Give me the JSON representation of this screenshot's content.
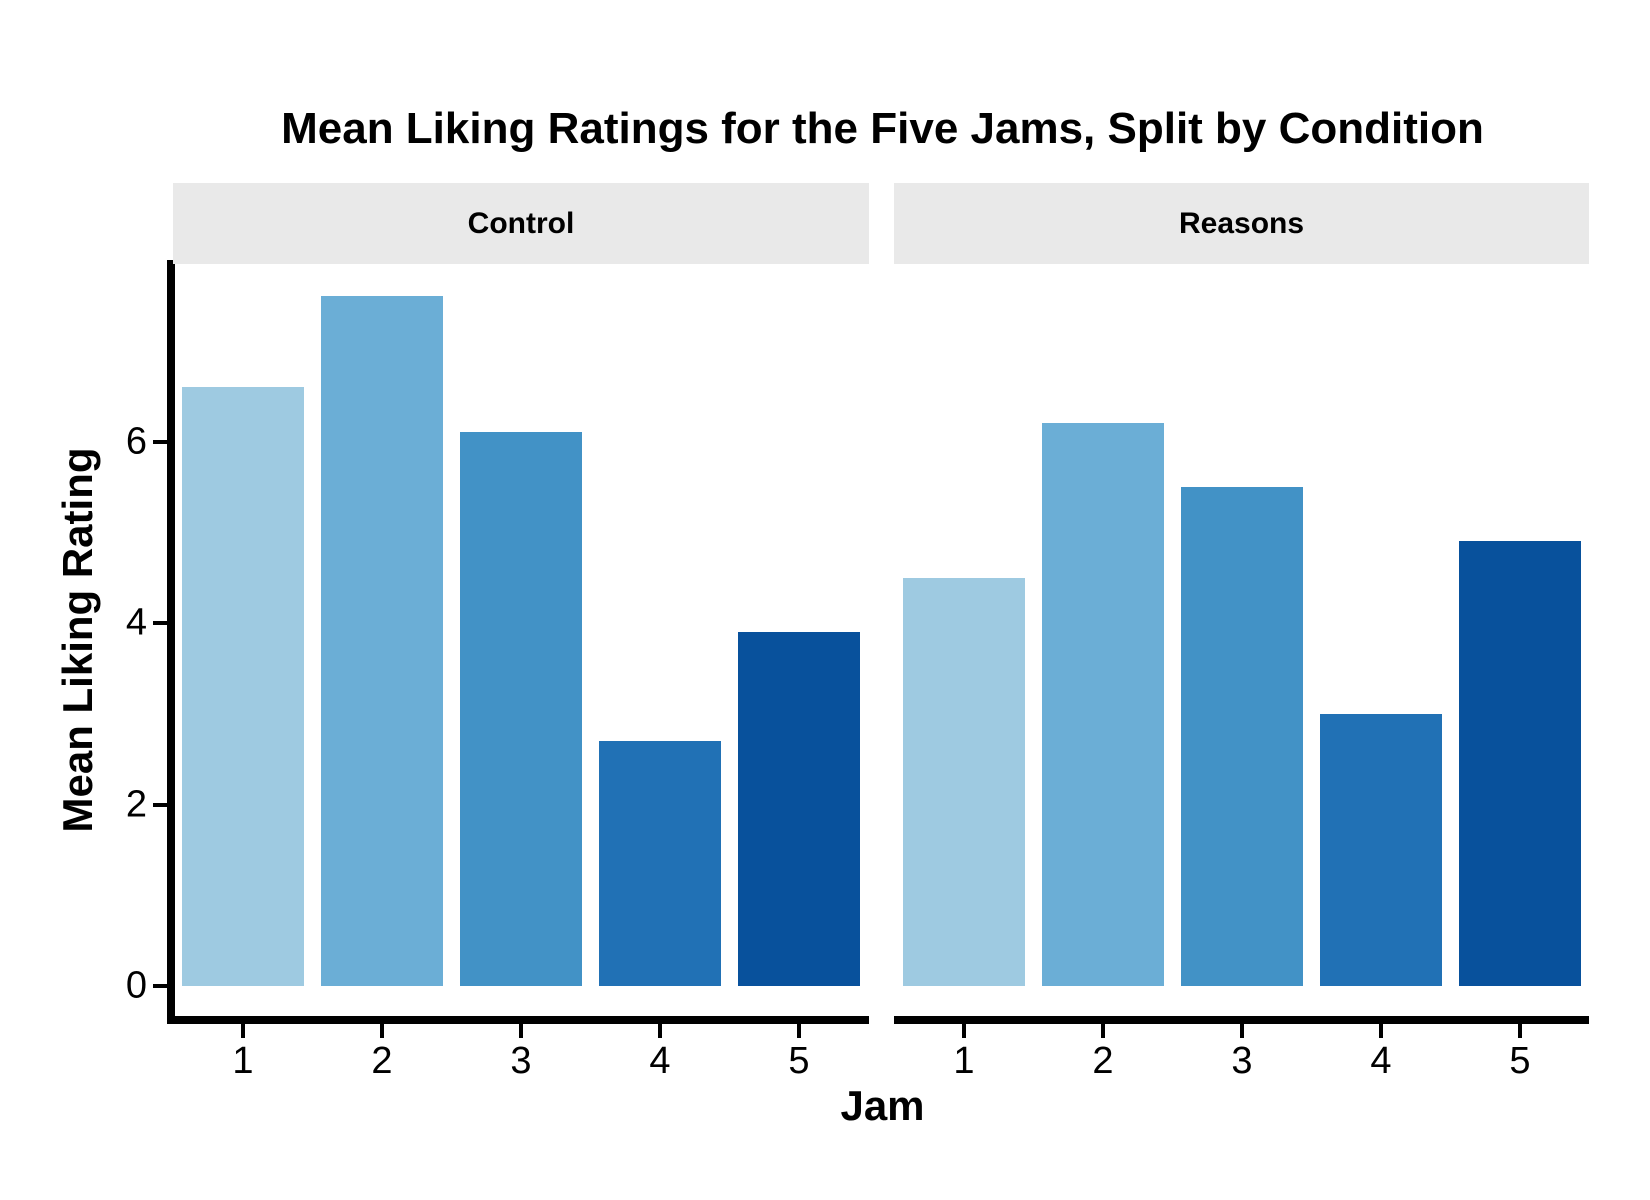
{
  "chart_data": {
    "type": "bar",
    "title": "Mean Liking Ratings for the Five Jams, Split by Condition",
    "xlabel": "Jam",
    "ylabel": "Mean Liking Rating",
    "categories": [
      "1",
      "2",
      "3",
      "4",
      "5"
    ],
    "facets": [
      {
        "label": "Control",
        "values": [
          6.6,
          7.6,
          6.1,
          2.7,
          3.9
        ]
      },
      {
        "label": "Reasons",
        "values": [
          4.5,
          6.2,
          5.5,
          3.0,
          4.9
        ]
      }
    ],
    "y_ticks": [
      "0",
      "2",
      "4",
      "6"
    ],
    "ylim": [
      0,
      8
    ],
    "palette": [
      "#9ECAE1",
      "#6BAED6",
      "#4292C6",
      "#2171B5",
      "#08519C"
    ],
    "colors": {
      "strip_background": "#E9E9E9",
      "axis": "#000000",
      "text": "#000000",
      "plot_background": "#FFFFFF"
    },
    "legend_position": "none",
    "grid": "off"
  }
}
